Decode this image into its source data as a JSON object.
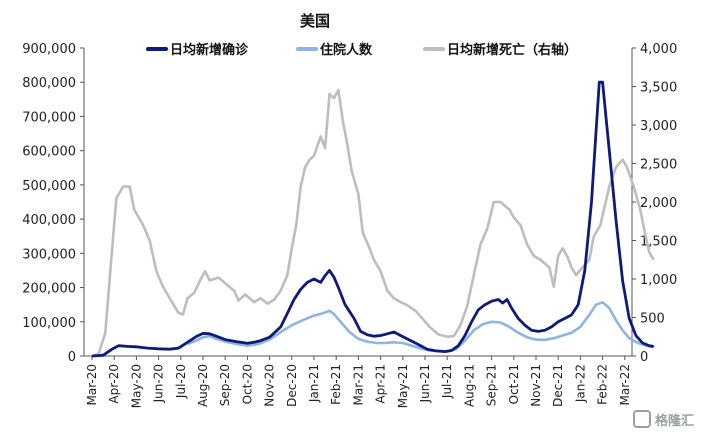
{
  "chart_data": {
    "type": "line",
    "title": "美国",
    "legend_position": "top",
    "grid": false,
    "y_left_lim": [
      0,
      900000
    ],
    "y_right_lim": [
      0,
      4000
    ],
    "y_left_ticks": [
      "0",
      "100,000",
      "200,000",
      "300,000",
      "400,000",
      "500,000",
      "600,000",
      "700,000",
      "800,000",
      "900,000"
    ],
    "y_right_ticks": [
      "0",
      "500",
      "1,000",
      "1,500",
      "2,000",
      "2,500",
      "3,000",
      "3,500",
      "4,000"
    ],
    "x_ticks": [
      "Mar-20",
      "Apr-20",
      "May-20",
      "Jun-20",
      "Jul-20",
      "Aug-20",
      "Sep-20",
      "Oct-20",
      "Nov-20",
      "Dec-20",
      "Jan-21",
      "Feb-21",
      "Mar-21",
      "Apr-21",
      "May-21",
      "Jun-21",
      "Jul-21",
      "Aug-21",
      "Sep-21",
      "Oct-21",
      "Nov-21",
      "Dec-21",
      "Jan-22",
      "Feb-22",
      "Mar-22"
    ],
    "series": [
      {
        "name": "日均新增确诊",
        "axis": "left",
        "color": "#0d1a7a",
        "points": [
          [
            0,
            0
          ],
          [
            0.5,
            2000
          ],
          [
            0.9,
            20000
          ],
          [
            1.2,
            30000
          ],
          [
            1.6,
            28000
          ],
          [
            2.0,
            27000
          ],
          [
            2.5,
            23000
          ],
          [
            3.0,
            21000
          ],
          [
            3.5,
            20000
          ],
          [
            3.9,
            23000
          ],
          [
            4.3,
            40000
          ],
          [
            4.7,
            57000
          ],
          [
            5.0,
            66000
          ],
          [
            5.3,
            65000
          ],
          [
            5.6,
            58000
          ],
          [
            6.0,
            48000
          ],
          [
            6.5,
            42000
          ],
          [
            7.0,
            37000
          ],
          [
            7.3,
            40000
          ],
          [
            7.6,
            45000
          ],
          [
            8.0,
            55000
          ],
          [
            8.5,
            85000
          ],
          [
            8.8,
            125000
          ],
          [
            9.1,
            165000
          ],
          [
            9.4,
            195000
          ],
          [
            9.7,
            215000
          ],
          [
            10.0,
            225000
          ],
          [
            10.3,
            215000
          ],
          [
            10.5,
            235000
          ],
          [
            10.7,
            250000
          ],
          [
            10.9,
            230000
          ],
          [
            11.1,
            200000
          ],
          [
            11.4,
            150000
          ],
          [
            11.8,
            110000
          ],
          [
            12.1,
            72000
          ],
          [
            12.4,
            62000
          ],
          [
            12.7,
            58000
          ],
          [
            13.0,
            60000
          ],
          [
            13.3,
            65000
          ],
          [
            13.6,
            70000
          ],
          [
            13.9,
            60000
          ],
          [
            14.2,
            50000
          ],
          [
            14.5,
            40000
          ],
          [
            14.8,
            30000
          ],
          [
            15.1,
            20000
          ],
          [
            15.5,
            15000
          ],
          [
            15.9,
            13000
          ],
          [
            16.2,
            16000
          ],
          [
            16.5,
            30000
          ],
          [
            16.8,
            60000
          ],
          [
            17.1,
            100000
          ],
          [
            17.4,
            135000
          ],
          [
            17.7,
            150000
          ],
          [
            18.0,
            160000
          ],
          [
            18.3,
            165000
          ],
          [
            18.5,
            155000
          ],
          [
            18.7,
            165000
          ],
          [
            18.9,
            140000
          ],
          [
            19.2,
            110000
          ],
          [
            19.5,
            90000
          ],
          [
            19.8,
            75000
          ],
          [
            20.1,
            72000
          ],
          [
            20.4,
            75000
          ],
          [
            20.7,
            85000
          ],
          [
            21.0,
            100000
          ],
          [
            21.3,
            110000
          ],
          [
            21.6,
            120000
          ],
          [
            21.9,
            150000
          ],
          [
            22.2,
            250000
          ],
          [
            22.5,
            450000
          ],
          [
            22.7,
            650000
          ],
          [
            22.85,
            800000
          ],
          [
            23.0,
            800000
          ],
          [
            23.15,
            700000
          ],
          [
            23.3,
            600000
          ],
          [
            23.6,
            400000
          ],
          [
            23.9,
            220000
          ],
          [
            24.2,
            110000
          ],
          [
            24.5,
            60000
          ],
          [
            24.8,
            38000
          ],
          [
            25.1,
            30000
          ],
          [
            25.3,
            28000
          ]
        ]
      },
      {
        "name": "住院人数",
        "axis": "left",
        "color": "#8eb4e0",
        "points": [
          [
            4.3,
            35000
          ],
          [
            4.7,
            45000
          ],
          [
            5.0,
            55000
          ],
          [
            5.3,
            58000
          ],
          [
            5.6,
            50000
          ],
          [
            6.0,
            42000
          ],
          [
            6.5,
            35000
          ],
          [
            7.0,
            30000
          ],
          [
            7.5,
            35000
          ],
          [
            8.0,
            48000
          ],
          [
            8.5,
            70000
          ],
          [
            9.0,
            90000
          ],
          [
            9.5,
            105000
          ],
          [
            10.0,
            118000
          ],
          [
            10.4,
            125000
          ],
          [
            10.7,
            132000
          ],
          [
            10.9,
            122000
          ],
          [
            11.2,
            100000
          ],
          [
            11.6,
            70000
          ],
          [
            12.0,
            50000
          ],
          [
            12.4,
            42000
          ],
          [
            12.8,
            38000
          ],
          [
            13.2,
            38000
          ],
          [
            13.6,
            40000
          ],
          [
            14.0,
            38000
          ],
          [
            14.4,
            30000
          ],
          [
            14.8,
            22000
          ],
          [
            15.2,
            16000
          ],
          [
            15.6,
            14000
          ],
          [
            16.0,
            14000
          ],
          [
            16.4,
            20000
          ],
          [
            16.8,
            45000
          ],
          [
            17.2,
            75000
          ],
          [
            17.6,
            93000
          ],
          [
            18.0,
            100000
          ],
          [
            18.4,
            98000
          ],
          [
            18.8,
            85000
          ],
          [
            19.2,
            68000
          ],
          [
            19.6,
            55000
          ],
          [
            20.0,
            48000
          ],
          [
            20.4,
            47000
          ],
          [
            20.8,
            52000
          ],
          [
            21.2,
            60000
          ],
          [
            21.6,
            68000
          ],
          [
            22.0,
            85000
          ],
          [
            22.4,
            120000
          ],
          [
            22.7,
            150000
          ],
          [
            23.0,
            157000
          ],
          [
            23.3,
            140000
          ],
          [
            23.6,
            105000
          ],
          [
            23.9,
            75000
          ],
          [
            24.2,
            52000
          ],
          [
            24.6,
            38000
          ],
          [
            25.0,
            30000
          ],
          [
            25.3,
            25000
          ]
        ]
      },
      {
        "name": "日均新增死亡（右轴）",
        "axis": "right",
        "color": "#bdbdbd",
        "points": [
          [
            0,
            0
          ],
          [
            0.3,
            30
          ],
          [
            0.6,
            300
          ],
          [
            0.85,
            1200
          ],
          [
            1.1,
            2050
          ],
          [
            1.4,
            2200
          ],
          [
            1.7,
            2200
          ],
          [
            1.9,
            1900
          ],
          [
            2.3,
            1700
          ],
          [
            2.6,
            1500
          ],
          [
            2.9,
            1100
          ],
          [
            3.2,
            900
          ],
          [
            3.6,
            700
          ],
          [
            3.9,
            560
          ],
          [
            4.1,
            540
          ],
          [
            4.3,
            750
          ],
          [
            4.6,
            820
          ],
          [
            4.9,
            1000
          ],
          [
            5.1,
            1100
          ],
          [
            5.3,
            980
          ],
          [
            5.7,
            1020
          ],
          [
            6.1,
            920
          ],
          [
            6.4,
            850
          ],
          [
            6.6,
            720
          ],
          [
            6.9,
            800
          ],
          [
            7.3,
            700
          ],
          [
            7.6,
            750
          ],
          [
            7.9,
            680
          ],
          [
            8.2,
            730
          ],
          [
            8.5,
            850
          ],
          [
            8.8,
            1050
          ],
          [
            9.0,
            1400
          ],
          [
            9.2,
            1700
          ],
          [
            9.4,
            2200
          ],
          [
            9.6,
            2450
          ],
          [
            9.8,
            2550
          ],
          [
            10.0,
            2600
          ],
          [
            10.3,
            2850
          ],
          [
            10.5,
            2700
          ],
          [
            10.7,
            3400
          ],
          [
            10.9,
            3350
          ],
          [
            11.1,
            3450
          ],
          [
            11.3,
            3050
          ],
          [
            11.5,
            2750
          ],
          [
            11.7,
            2400
          ],
          [
            12.0,
            2100
          ],
          [
            12.2,
            1600
          ],
          [
            12.5,
            1400
          ],
          [
            12.7,
            1250
          ],
          [
            13.0,
            1100
          ],
          [
            13.3,
            850
          ],
          [
            13.6,
            750
          ],
          [
            13.9,
            700
          ],
          [
            14.2,
            660
          ],
          [
            14.6,
            580
          ],
          [
            14.9,
            480
          ],
          [
            15.2,
            380
          ],
          [
            15.6,
            280
          ],
          [
            16.0,
            250
          ],
          [
            16.3,
            260
          ],
          [
            16.6,
            400
          ],
          [
            16.9,
            650
          ],
          [
            17.2,
            1050
          ],
          [
            17.5,
            1450
          ],
          [
            17.8,
            1650
          ],
          [
            18.1,
            2000
          ],
          [
            18.4,
            2000
          ],
          [
            18.6,
            1950
          ],
          [
            18.8,
            1900
          ],
          [
            19.0,
            1800
          ],
          [
            19.3,
            1700
          ],
          [
            19.6,
            1450
          ],
          [
            19.9,
            1300
          ],
          [
            20.2,
            1250
          ],
          [
            20.6,
            1150
          ],
          [
            20.8,
            900
          ],
          [
            21.0,
            1300
          ],
          [
            21.2,
            1400
          ],
          [
            21.4,
            1300
          ],
          [
            21.6,
            1150
          ],
          [
            21.8,
            1050
          ],
          [
            22.1,
            1150
          ],
          [
            22.4,
            1250
          ],
          [
            22.6,
            1550
          ],
          [
            22.9,
            1700
          ],
          [
            23.1,
            1950
          ],
          [
            23.3,
            2200
          ],
          [
            23.6,
            2450
          ],
          [
            23.9,
            2550
          ],
          [
            24.1,
            2450
          ],
          [
            24.4,
            2200
          ],
          [
            24.7,
            1900
          ],
          [
            24.9,
            1600
          ],
          [
            25.1,
            1350
          ],
          [
            25.3,
            1250
          ]
        ]
      }
    ]
  },
  "watermark": {
    "text": "格隆汇",
    "icon": "logo-square-icon"
  }
}
